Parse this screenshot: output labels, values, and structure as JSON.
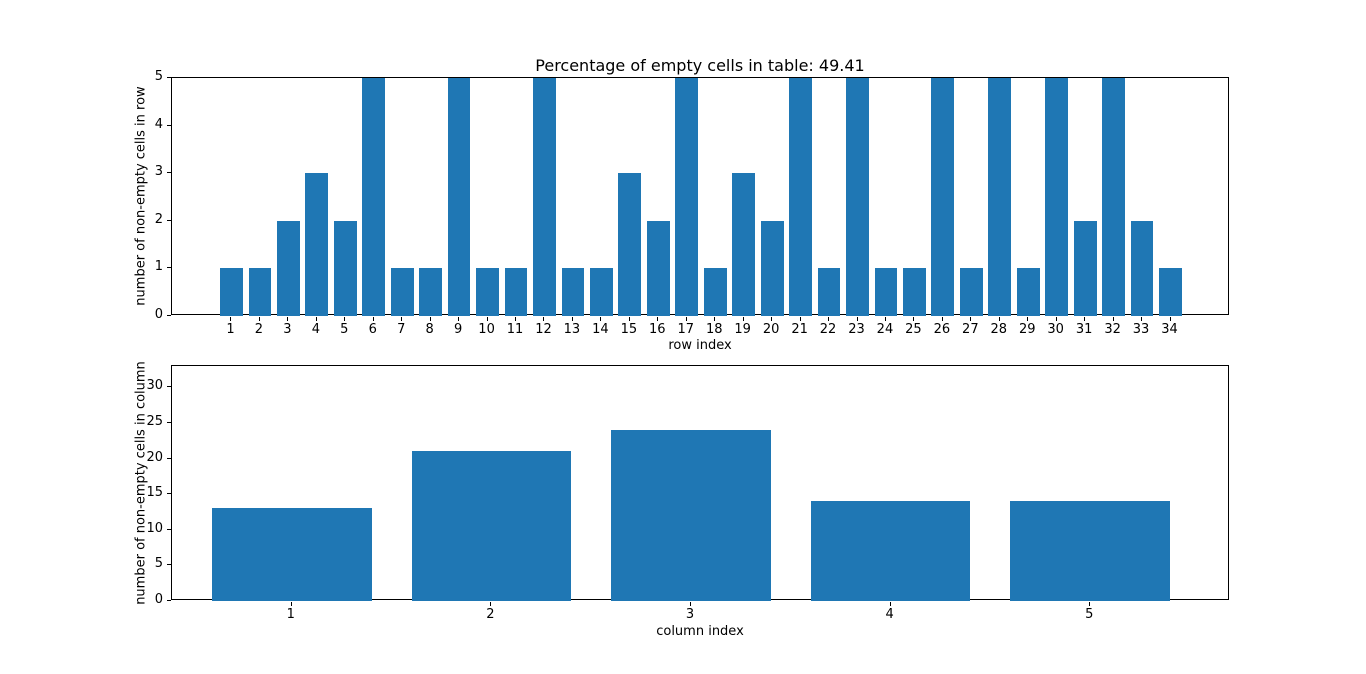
{
  "figure": {
    "background_color": "#ffffff",
    "bar_color": "#1f77b4",
    "axis_color": "#000000",
    "text_color": "#000000"
  },
  "chart_data": [
    {
      "type": "bar",
      "title": "Percentage of empty cells in table: 49.41",
      "xlabel": "row index",
      "ylabel": "number of non-empty cells in row",
      "categories": [
        1,
        2,
        3,
        4,
        5,
        6,
        7,
        8,
        9,
        10,
        11,
        12,
        13,
        14,
        15,
        16,
        17,
        18,
        19,
        20,
        21,
        22,
        23,
        24,
        25,
        26,
        27,
        28,
        29,
        30,
        31,
        32,
        33,
        34
      ],
      "values": [
        1,
        1,
        2,
        3,
        2,
        5,
        1,
        1,
        5,
        1,
        1,
        5,
        1,
        1,
        3,
        2,
        5,
        1,
        3,
        2,
        5,
        1,
        5,
        1,
        1,
        5,
        1,
        5,
        1,
        5,
        2,
        5,
        2,
        1
      ],
      "yticks": [
        0,
        1,
        2,
        3,
        4,
        5
      ],
      "ylim": [
        0,
        5
      ],
      "xlim": [
        -1.09,
        36.09
      ],
      "bar_width": 0.8,
      "grid": false
    },
    {
      "type": "bar",
      "title": "",
      "xlabel": "column index",
      "ylabel": "number of non-empty cells in column",
      "categories": [
        1,
        2,
        3,
        4,
        5
      ],
      "values": [
        13,
        21,
        24,
        14,
        14
      ],
      "yticks": [
        0,
        5,
        10,
        15,
        20,
        25,
        30
      ],
      "ylim": [
        0,
        33
      ],
      "xlim": [
        0.4,
        5.7
      ],
      "bar_width": 0.8,
      "grid": false
    }
  ]
}
